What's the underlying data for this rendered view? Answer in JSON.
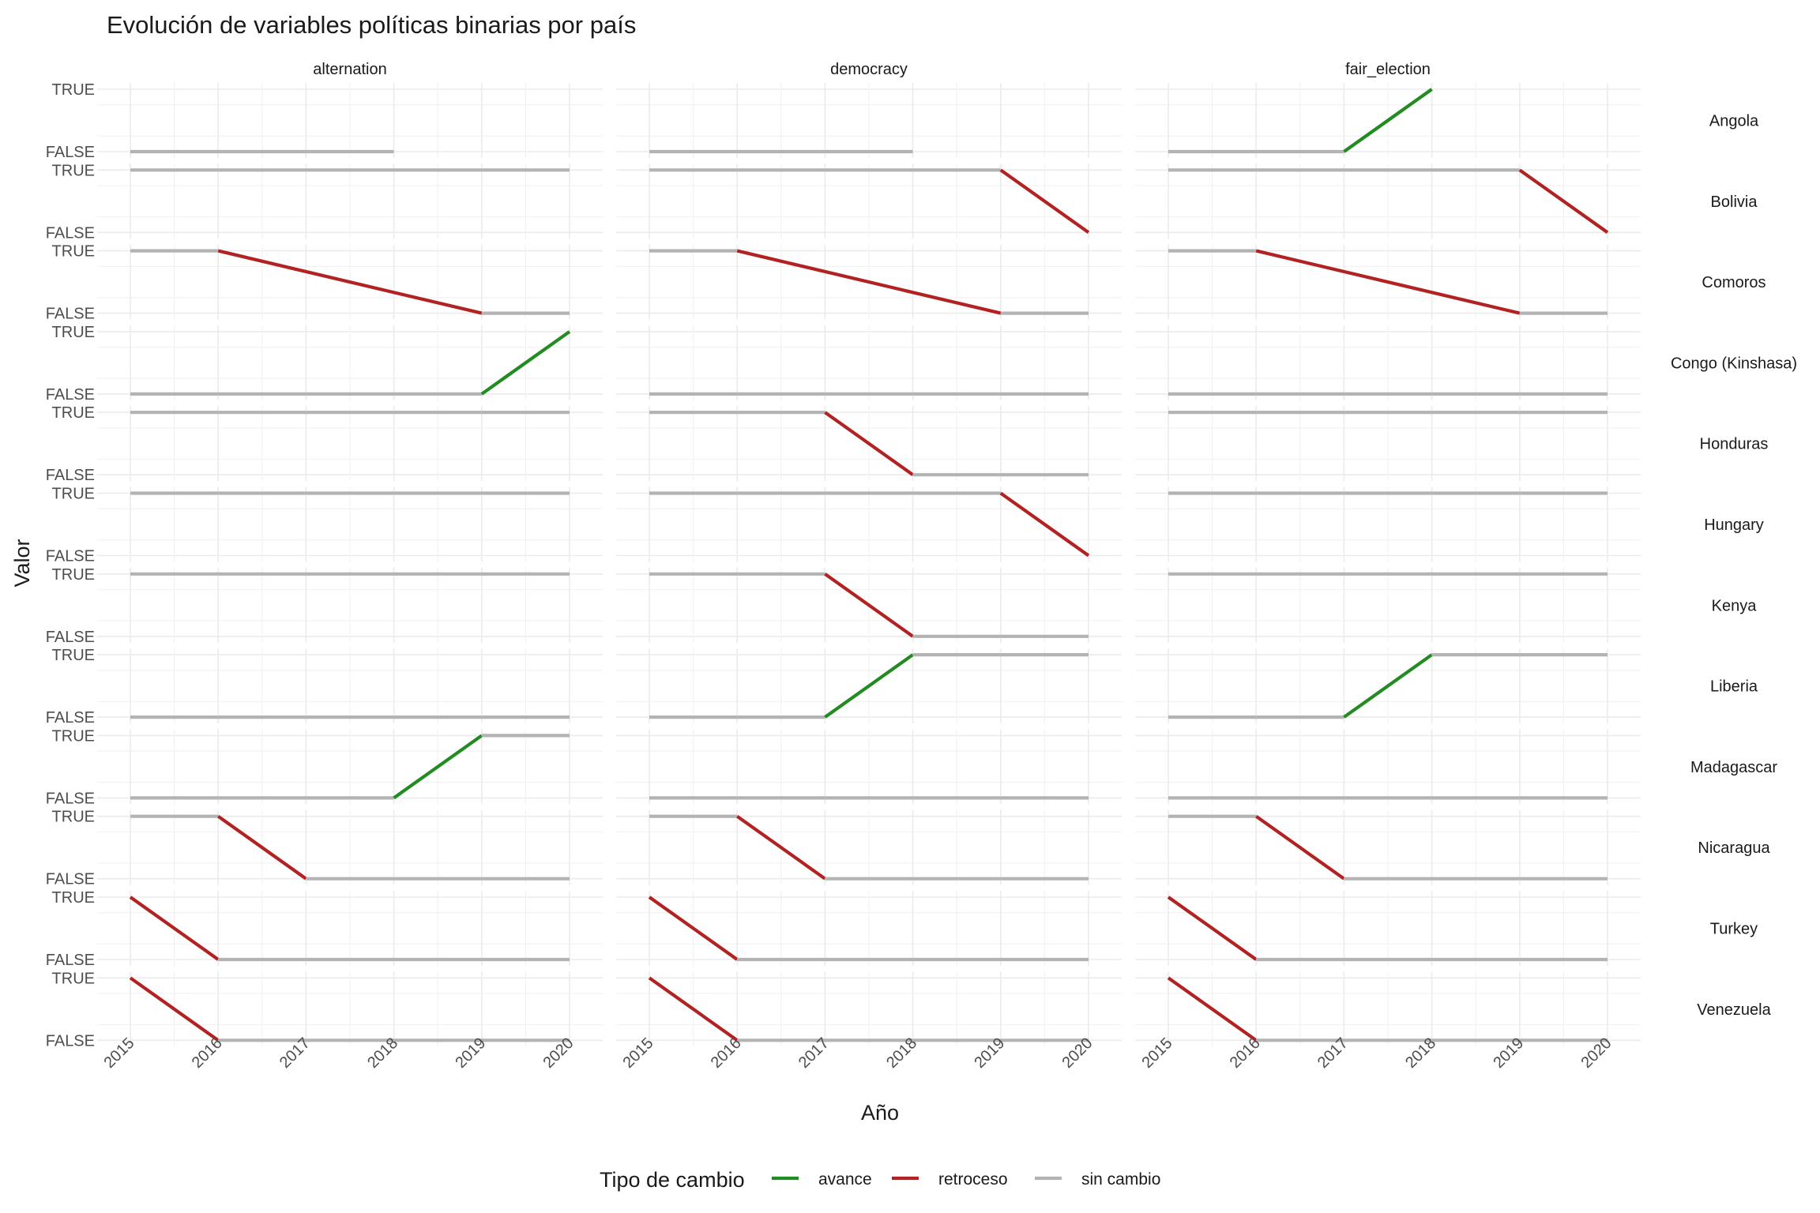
{
  "chart_data": {
    "type": "line",
    "title": "Evolución de variables políticas binarias por país",
    "xlabel": "Año",
    "ylabel": "Valor",
    "x_ticks": [
      2015,
      2016,
      2017,
      2018,
      2019,
      2020
    ],
    "y_ticks": [
      "FALSE",
      "TRUE"
    ],
    "xlim": [
      2015,
      2020
    ],
    "grid": true,
    "legend": {
      "title": "Tipo de cambio",
      "position": "bottom",
      "entries": [
        {
          "label": "avance",
          "color": "#228B22"
        },
        {
          "label": "retroceso",
          "color": "#B22222"
        },
        {
          "label": "sin cambio",
          "color": "#B3B3B3"
        }
      ]
    },
    "columns": [
      "alternation",
      "democracy",
      "fair_election"
    ],
    "rows": [
      "Angola",
      "Bolivia",
      "Comoros",
      "Congo (Kinshasa)",
      "Honduras",
      "Hungary",
      "Kenya",
      "Liberia",
      "Madagascar",
      "Nicaragua",
      "Turkey",
      "Venezuela"
    ],
    "years": [
      2015,
      2016,
      2017,
      2018,
      2019,
      2020
    ],
    "series": [
      {
        "country": "Angola",
        "variable": "alternation",
        "values": [
          false,
          false,
          false,
          false,
          null,
          null
        ]
      },
      {
        "country": "Angola",
        "variable": "democracy",
        "values": [
          false,
          false,
          false,
          false,
          null,
          null
        ]
      },
      {
        "country": "Angola",
        "variable": "fair_election",
        "values": [
          false,
          false,
          false,
          true,
          null,
          null
        ]
      },
      {
        "country": "Bolivia",
        "variable": "alternation",
        "values": [
          true,
          true,
          true,
          true,
          true,
          true
        ]
      },
      {
        "country": "Bolivia",
        "variable": "democracy",
        "values": [
          true,
          true,
          true,
          true,
          true,
          false
        ]
      },
      {
        "country": "Bolivia",
        "variable": "fair_election",
        "values": [
          true,
          true,
          true,
          true,
          true,
          false
        ]
      },
      {
        "country": "Comoros",
        "variable": "alternation",
        "values": [
          true,
          true,
          null,
          null,
          false,
          false
        ]
      },
      {
        "country": "Comoros",
        "variable": "democracy",
        "values": [
          true,
          true,
          null,
          null,
          false,
          false
        ]
      },
      {
        "country": "Comoros",
        "variable": "fair_election",
        "values": [
          true,
          true,
          null,
          null,
          false,
          false
        ]
      },
      {
        "country": "Congo (Kinshasa)",
        "variable": "alternation",
        "values": [
          false,
          false,
          false,
          false,
          false,
          true
        ]
      },
      {
        "country": "Congo (Kinshasa)",
        "variable": "democracy",
        "values": [
          false,
          false,
          false,
          false,
          false,
          false
        ]
      },
      {
        "country": "Congo (Kinshasa)",
        "variable": "fair_election",
        "values": [
          false,
          false,
          false,
          false,
          false,
          false
        ]
      },
      {
        "country": "Honduras",
        "variable": "alternation",
        "values": [
          true,
          true,
          true,
          true,
          true,
          true
        ]
      },
      {
        "country": "Honduras",
        "variable": "democracy",
        "values": [
          true,
          true,
          true,
          false,
          false,
          false
        ]
      },
      {
        "country": "Honduras",
        "variable": "fair_election",
        "values": [
          true,
          true,
          true,
          true,
          true,
          true
        ]
      },
      {
        "country": "Hungary",
        "variable": "alternation",
        "values": [
          true,
          true,
          true,
          true,
          true,
          true
        ]
      },
      {
        "country": "Hungary",
        "variable": "democracy",
        "values": [
          true,
          true,
          true,
          true,
          true,
          false
        ]
      },
      {
        "country": "Hungary",
        "variable": "fair_election",
        "values": [
          true,
          true,
          true,
          true,
          true,
          true
        ]
      },
      {
        "country": "Kenya",
        "variable": "alternation",
        "values": [
          true,
          true,
          true,
          true,
          true,
          true
        ]
      },
      {
        "country": "Kenya",
        "variable": "democracy",
        "values": [
          true,
          true,
          true,
          false,
          false,
          false
        ]
      },
      {
        "country": "Kenya",
        "variable": "fair_election",
        "values": [
          true,
          true,
          true,
          true,
          true,
          true
        ]
      },
      {
        "country": "Liberia",
        "variable": "alternation",
        "values": [
          false,
          false,
          false,
          false,
          false,
          false
        ]
      },
      {
        "country": "Liberia",
        "variable": "democracy",
        "values": [
          false,
          false,
          false,
          true,
          true,
          true
        ]
      },
      {
        "country": "Liberia",
        "variable": "fair_election",
        "values": [
          false,
          false,
          false,
          true,
          true,
          true
        ]
      },
      {
        "country": "Madagascar",
        "variable": "alternation",
        "values": [
          false,
          false,
          false,
          false,
          true,
          true
        ]
      },
      {
        "country": "Madagascar",
        "variable": "democracy",
        "values": [
          false,
          false,
          false,
          false,
          false,
          false
        ]
      },
      {
        "country": "Madagascar",
        "variable": "fair_election",
        "values": [
          false,
          false,
          false,
          false,
          false,
          false
        ]
      },
      {
        "country": "Nicaragua",
        "variable": "alternation",
        "values": [
          true,
          true,
          false,
          false,
          false,
          false
        ]
      },
      {
        "country": "Nicaragua",
        "variable": "democracy",
        "values": [
          true,
          true,
          false,
          false,
          false,
          false
        ]
      },
      {
        "country": "Nicaragua",
        "variable": "fair_election",
        "values": [
          true,
          true,
          false,
          false,
          false,
          false
        ]
      },
      {
        "country": "Turkey",
        "variable": "alternation",
        "values": [
          true,
          false,
          false,
          false,
          false,
          false
        ]
      },
      {
        "country": "Turkey",
        "variable": "democracy",
        "values": [
          true,
          false,
          false,
          false,
          false,
          false
        ]
      },
      {
        "country": "Turkey",
        "variable": "fair_election",
        "values": [
          true,
          false,
          false,
          false,
          false,
          false
        ]
      },
      {
        "country": "Venezuela",
        "variable": "alternation",
        "values": [
          true,
          false,
          false,
          false,
          false,
          false
        ]
      },
      {
        "country": "Venezuela",
        "variable": "democracy",
        "values": [
          true,
          false,
          false,
          false,
          false,
          false
        ]
      },
      {
        "country": "Venezuela",
        "variable": "fair_election",
        "values": [
          true,
          false,
          false,
          false,
          false,
          false
        ]
      }
    ]
  }
}
